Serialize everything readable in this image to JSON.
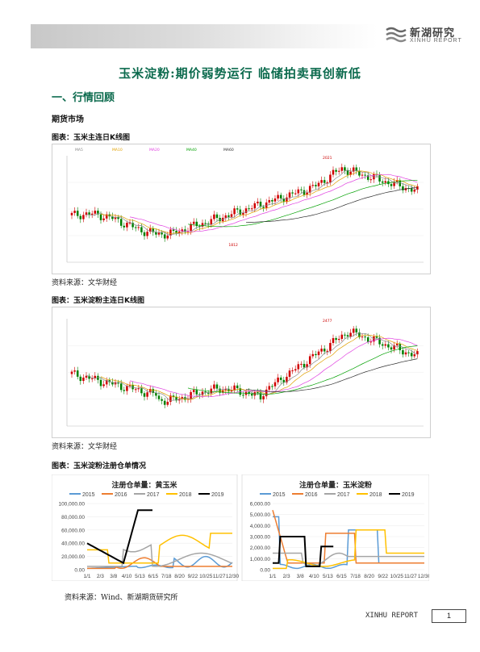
{
  "header": {
    "logo_cn": "新湖研究",
    "logo_en": "XINHU REPORT"
  },
  "title": "玉米淀粉:期价弱势运行 临储拍卖再创新低",
  "section": "一、行情回顾",
  "subsection": "期货市场",
  "figures": [
    {
      "caption": "图表：玉米主连日K线图",
      "source": "资料来源：文华财经",
      "chart_data": {
        "type": "candlestick",
        "legend_labels": [
          "MA5",
          "MA10",
          "MA20",
          "MA40",
          "MA60"
        ],
        "annotations": [
          "2021",
          "1812"
        ],
        "ma_colors": [
          "#888888",
          "#e0a000",
          "#e040e0",
          "#00a000",
          "#303030"
        ],
        "up_color": "#d00000",
        "down_color": "#008000"
      }
    },
    {
      "caption": "图表：玉米淀粉主连日K线图",
      "source": "资料来源：文华财经",
      "chart_data": {
        "type": "candlestick",
        "annotations": [
          "2477"
        ],
        "ma_colors": [
          "#888888",
          "#e0a000",
          "#e040e0",
          "#00a000",
          "#303030"
        ],
        "up_color": "#d00000",
        "down_color": "#008000"
      }
    },
    {
      "caption": "图表：玉米淀粉注册仓单情况",
      "source": "资料来源：Wind、新湖期货研究所",
      "chart_data": [
        {
          "type": "line",
          "title": "注册仓单量：黄玉米",
          "series_names": [
            "2015",
            "2016",
            "2017",
            "2018",
            "2019"
          ],
          "series_colors": [
            "#5b9bd5",
            "#ed7d31",
            "#a5a5a5",
            "#ffc000",
            "#000000"
          ],
          "yticks": [
            "100,000.00",
            "80,000.00",
            "60,000.00",
            "40,000.00",
            "20,000.00",
            "0.00"
          ],
          "ylim": [
            0,
            100000
          ],
          "xticks": [
            "1/1",
            "2/3",
            "3/8",
            "4/10",
            "5/13",
            "6/15",
            "7/18",
            "8/20",
            "9/22",
            "10/25",
            "11/27",
            "12/30"
          ]
        },
        {
          "type": "line",
          "title": "注册仓单量：玉米淀粉",
          "series_names": [
            "2015",
            "2016",
            "2017",
            "2018",
            "2019"
          ],
          "series_colors": [
            "#5b9bd5",
            "#ed7d31",
            "#a5a5a5",
            "#ffc000",
            "#000000"
          ],
          "yticks": [
            "6,000.00",
            "5,000.00",
            "4,000.00",
            "3,000.00",
            "2,000.00",
            "1,000.00",
            "0.00"
          ],
          "ylim": [
            0,
            6000
          ],
          "xticks": [
            "1/1",
            "2/3",
            "3/8",
            "4/10",
            "5/13",
            "6/15",
            "7/18",
            "8/20",
            "9/22",
            "10/25",
            "11/27",
            "12/30"
          ]
        }
      ]
    }
  ],
  "footer": {
    "report_label": "XINHU  REPORT",
    "page_number": "1"
  }
}
